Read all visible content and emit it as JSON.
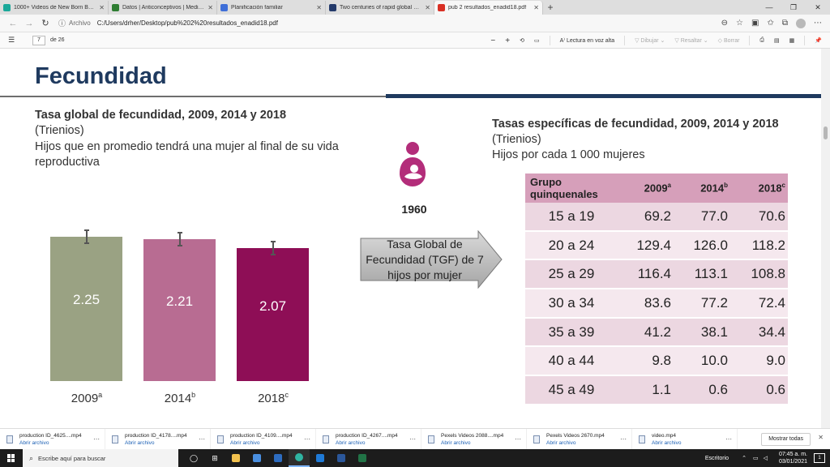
{
  "browser": {
    "tabs": [
      {
        "title": "1000+ Videos de New Born Baby",
        "favicon_color": "#1aa89a",
        "active": false
      },
      {
        "title": "Datos | Anticonceptivos | Medicina",
        "favicon_color": "#2e7d32",
        "active": false
      },
      {
        "title": "Planificación familiar",
        "favicon_color": "#3f6fd8",
        "active": false
      },
      {
        "title": "Two centuries of rapid global population",
        "favicon_color": "#243a6b",
        "active": false
      },
      {
        "title": "pub 2 resultados_enadid18.pdf",
        "favicon_color": "#d93025",
        "active": true
      }
    ],
    "new_tab": "+",
    "address": {
      "label": "Archivo",
      "url": "C:/Users/drher/Desktop/pub%202%20resultados_enadid18.pdf"
    }
  },
  "pdf_toolbar": {
    "page": "7",
    "of_pages": "de 26",
    "read_aloud": "Lectura en voz alta",
    "draw": "Dibujar",
    "highlight": "Resaltar",
    "erase": "Borrar"
  },
  "slide": {
    "title": "Fecundidad",
    "left_heading": "Tasa global de fecundidad, 2009, 2014 y 2018",
    "left_sub1": "(Trienios)",
    "left_sub2": "Hijos que en promedio tendrá una mujer al final de su vida reproductiva",
    "year_1960": "1960",
    "arrow_text": "Tasa Global de Fecundidad (TGF) de 7 hijos por mujer",
    "right_heading": "Tasas específicas de fecundidad, 2009, 2014 y 2018",
    "right_sub1": "(Trienios)",
    "right_sub2": "Hijos por cada 1 000 mujeres",
    "table": {
      "header": {
        "group": "Grupo quinquenales",
        "y2009": "2009",
        "s2009": "a",
        "y2014": "2014",
        "s2014": "b",
        "y2018": "2018",
        "s2018": "c"
      },
      "rows": [
        {
          "group": "15 a 19",
          "v2009": "69.2",
          "v2014": "77.0",
          "v2018": "70.6"
        },
        {
          "group": "20 a 24",
          "v2009": "129.4",
          "v2014": "126.0",
          "v2018": "118.2"
        },
        {
          "group": "25 a 29",
          "v2009": "116.4",
          "v2014": "113.1",
          "v2018": "108.8"
        },
        {
          "group": "30 a 34",
          "v2009": "83.6",
          "v2014": "77.2",
          "v2018": "72.4"
        },
        {
          "group": "35 a 39",
          "v2009": "41.2",
          "v2014": "38.1",
          "v2018": "34.4"
        },
        {
          "group": "40 a 44",
          "v2009": "9.8",
          "v2014": "10.0",
          "v2018": "9.0"
        },
        {
          "group": "45 a 49",
          "v2009": "1.1",
          "v2014": "0.6",
          "v2018": "0.6"
        }
      ]
    }
  },
  "chart_data": {
    "type": "bar",
    "categories": [
      "2009",
      "2014",
      "2018"
    ],
    "category_superscripts": [
      "a",
      "b",
      "c"
    ],
    "values": [
      2.25,
      2.21,
      2.07
    ],
    "value_labels": [
      "2.25",
      "2.21",
      "2.07"
    ],
    "colors": [
      "#9aa283",
      "#b86c92",
      "#8e0e56"
    ],
    "error_bars": true,
    "ylim": [
      0,
      2.4
    ],
    "title": "Tasa global de fecundidad, 2009, 2014 y 2018"
  },
  "downloads": [
    {
      "name": "production ID_4625....mp4",
      "action": "Abrir archivo"
    },
    {
      "name": "production ID_4178....mp4",
      "action": "Abrir archivo"
    },
    {
      "name": "production ID_4109....mp4",
      "action": "Abrir archivo"
    },
    {
      "name": "production ID_4267....mp4",
      "action": "Abrir archivo"
    },
    {
      "name": "Pexels Videos 2088....mp4",
      "action": "Abrir archivo"
    },
    {
      "name": "Pexels Videos 2670.mp4",
      "action": "Abrir archivo"
    },
    {
      "name": "video.mp4",
      "action": "Abrir archivo"
    }
  ],
  "downloads_show_all": "Mostrar todas",
  "taskbar": {
    "search_placeholder": "Escribe aquí para buscar",
    "desktop": "Escritorio",
    "time": "07:45 a. m.",
    "date": "03/01/2021",
    "notifications": "1"
  }
}
